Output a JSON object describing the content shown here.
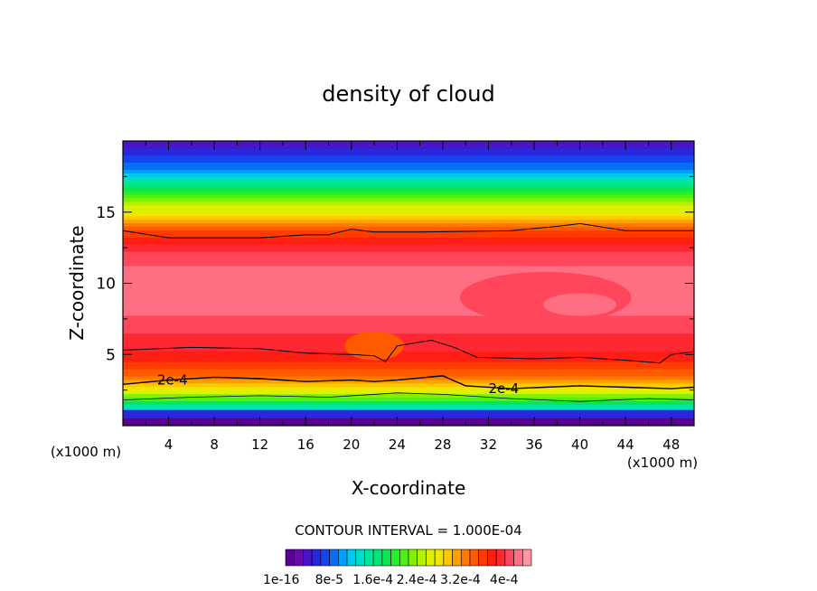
{
  "chart_data": {
    "type": "heatmap",
    "title": "density of cloud",
    "xlabel": "X-coordinate",
    "ylabel": "Z-coordinate",
    "x_unit_label": "(x1000 m)",
    "x_unit_label_right": "(x1000 m)",
    "xlim": [
      0,
      50
    ],
    "ylim": [
      0,
      20
    ],
    "x_ticks": [
      "4",
      "8",
      "12",
      "16",
      "20",
      "24",
      "28",
      "32",
      "36",
      "40",
      "44",
      "48"
    ],
    "x_tick_values": [
      4,
      8,
      12,
      16,
      20,
      24,
      28,
      32,
      36,
      40,
      44,
      48
    ],
    "y_ticks": [
      "5",
      "10",
      "15"
    ],
    "y_tick_values": [
      5,
      10,
      15
    ],
    "contour_interval_text": "CONTOUR INTERVAL = 1.000E-04",
    "contour_labels": [
      {
        "text": "2e-4",
        "x": 3.0,
        "z": 3.2
      },
      {
        "text": "2e-4",
        "x": 32.0,
        "z": 2.6
      }
    ],
    "colorbar": {
      "tick_labels": [
        "1e-16",
        "8e-5",
        "1.6e-4",
        "2.4e-4",
        "3.2e-4",
        "4e-4"
      ],
      "tick_values": [
        0,
        8e-05,
        0.00016,
        0.00024,
        0.00032,
        0.0004
      ],
      "range": [
        0,
        0.00045
      ],
      "colors": [
        "#5a0096",
        "#6a0aaa",
        "#4b14c8",
        "#2828dc",
        "#1446f0",
        "#0a6ef5",
        "#00a0ff",
        "#00c8f0",
        "#00dcc8",
        "#00e6a0",
        "#00e678",
        "#0ae650",
        "#28f028",
        "#50f014",
        "#82f000",
        "#b4f000",
        "#dcf000",
        "#f0e600",
        "#ffc800",
        "#ffa000",
        "#ff7800",
        "#ff5a00",
        "#ff3c00",
        "#ff1e14",
        "#ff2832",
        "#ff465a",
        "#ff6e82",
        "#ff96a0"
      ]
    },
    "profiles": [
      {
        "x": 0,
        "values": [
          0.00012,
          0.00028,
          0.00036,
          0.00039,
          0.00041,
          0.00043,
          0.00042,
          0.0004,
          0.00034,
          0.00022,
          0.0001,
          3e-05
        ]
      },
      {
        "x": 25,
        "values": [
          0.00012,
          0.00028,
          0.00036,
          0.00039,
          0.00041,
          0.00043,
          0.00042,
          0.0004,
          0.00034,
          0.00022,
          0.0001,
          3e-05
        ]
      },
      {
        "x": 50,
        "values": [
          0.00012,
          0.00028,
          0.00036,
          0.00039,
          0.00041,
          0.00043,
          0.00042,
          0.0004,
          0.00034,
          0.00022,
          0.0001,
          3e-05
        ]
      }
    ],
    "profile_z": [
      1,
      2.5,
      4,
      5.5,
      7,
      9,
      11,
      12.5,
      14,
      16,
      18,
      20
    ],
    "lower_boundary_z": 0.5
  }
}
